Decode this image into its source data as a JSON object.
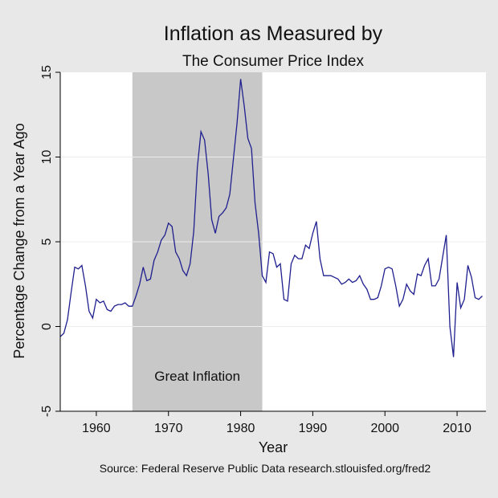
{
  "chart_data": {
    "type": "line",
    "title": "Inflation as Measured by",
    "subtitle": "The Consumer Price Index",
    "xlabel": "Year",
    "ylabel": "Percentage Change from a Year Ago",
    "source": "Source: Federal Reserve Public Data research.stlouisfed.org/fred2",
    "xlim": [
      1955,
      2014
    ],
    "ylim": [
      -5,
      15
    ],
    "x_ticks": [
      1960,
      1970,
      1980,
      1990,
      2000,
      2010
    ],
    "y_ticks": [
      -5,
      0,
      5,
      10,
      15
    ],
    "grid": true,
    "line_color": "#1f1f8f",
    "shaded_region": {
      "label": "Great Inflation",
      "x_start": 1965,
      "x_end": 1983,
      "color": "#c8c8c8"
    },
    "series": [
      {
        "x": [
          1955.0,
          1955.5,
          1956.0,
          1956.5,
          1957.0,
          1957.5,
          1958.0,
          1958.5,
          1959.0,
          1959.5,
          1960.0,
          1960.5,
          1961.0,
          1961.5,
          1962.0,
          1962.5,
          1963.0,
          1963.5,
          1964.0,
          1964.5,
          1965.0,
          1965.5,
          1966.0,
          1966.5,
          1967.0,
          1967.5,
          1968.0,
          1968.5,
          1969.0,
          1969.5,
          1970.0,
          1970.5,
          1971.0,
          1971.5,
          1972.0,
          1972.5,
          1973.0,
          1973.5,
          1974.0,
          1974.5,
          1975.0,
          1975.5,
          1976.0,
          1976.5,
          1977.0,
          1977.5,
          1978.0,
          1978.5,
          1979.0,
          1979.5,
          1980.0,
          1980.5,
          1981.0,
          1981.5,
          1982.0,
          1982.5,
          1983.0,
          1983.5,
          1984.0,
          1984.5,
          1985.0,
          1985.5,
          1986.0,
          1986.5,
          1987.0,
          1987.5,
          1988.0,
          1988.5,
          1989.0,
          1989.5,
          1990.0,
          1990.5,
          1991.0,
          1991.5,
          1992.0,
          1992.5,
          1993.0,
          1993.5,
          1994.0,
          1994.5,
          1995.0,
          1995.5,
          1996.0,
          1996.5,
          1997.0,
          1997.5,
          1998.0,
          1998.5,
          1999.0,
          1999.5,
          2000.0,
          2000.5,
          2001.0,
          2001.5,
          2002.0,
          2002.5,
          2003.0,
          2003.5,
          2004.0,
          2004.5,
          2005.0,
          2005.5,
          2006.0,
          2006.5,
          2007.0,
          2007.5,
          2008.0,
          2008.5,
          2009.0,
          2009.5,
          2010.0,
          2010.5,
          2011.0,
          2011.5,
          2012.0,
          2012.5,
          2013.0,
          2013.5
        ],
        "y": [
          -0.6,
          -0.4,
          0.4,
          2.0,
          3.5,
          3.4,
          3.6,
          2.4,
          0.9,
          0.5,
          1.6,
          1.4,
          1.5,
          1.0,
          0.9,
          1.2,
          1.3,
          1.3,
          1.4,
          1.2,
          1.2,
          1.8,
          2.5,
          3.5,
          2.7,
          2.8,
          3.9,
          4.4,
          5.1,
          5.4,
          6.1,
          5.9,
          4.4,
          4.0,
          3.3,
          3.0,
          3.7,
          5.6,
          9.4,
          11.5,
          11.0,
          9.0,
          6.3,
          5.5,
          6.5,
          6.7,
          7.0,
          7.8,
          9.9,
          12.0,
          14.6,
          13.0,
          11.1,
          10.5,
          7.3,
          5.5,
          3.0,
          2.6,
          4.4,
          4.3,
          3.5,
          3.7,
          1.6,
          1.5,
          3.7,
          4.2,
          4.0,
          4.0,
          4.8,
          4.6,
          5.5,
          6.2,
          4.0,
          3.0,
          3.0,
          3.0,
          2.9,
          2.8,
          2.5,
          2.6,
          2.8,
          2.6,
          2.7,
          3.0,
          2.5,
          2.2,
          1.6,
          1.6,
          1.7,
          2.4,
          3.4,
          3.5,
          3.4,
          2.4,
          1.2,
          1.6,
          2.5,
          2.1,
          1.9,
          3.1,
          3.0,
          3.6,
          4.0,
          2.4,
          2.4,
          2.8,
          4.1,
          5.4,
          0.0,
          -1.8,
          2.6,
          1.1,
          1.6,
          3.6,
          2.9,
          1.7,
          1.6,
          1.8
        ]
      }
    ]
  }
}
